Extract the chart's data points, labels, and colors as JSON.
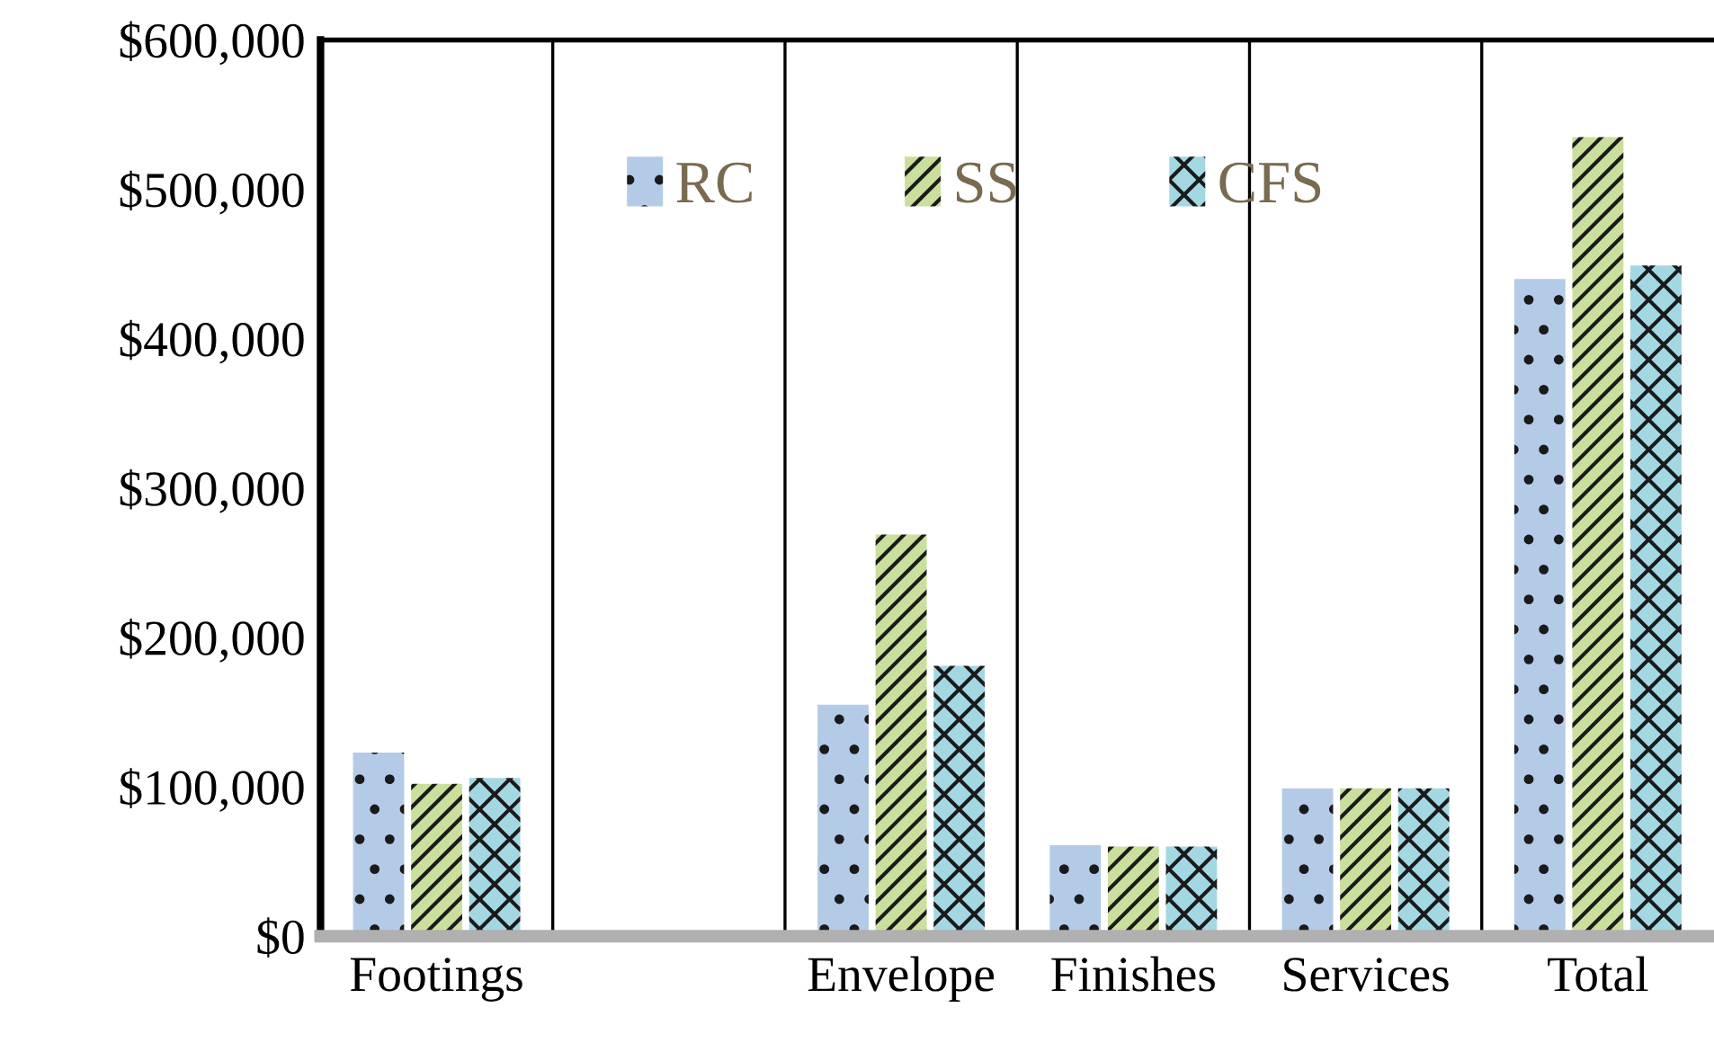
{
  "chart_data": {
    "type": "bar",
    "categories": [
      "Footings",
      null,
      "Envelope",
      "Finishes",
      "Services",
      "Total"
    ],
    "series": [
      {
        "name": "RC",
        "color": "#b4cbe8",
        "values": [
          123000,
          null,
          155000,
          61000,
          99000,
          440000
        ]
      },
      {
        "name": "SS",
        "color": "#cadf9c",
        "values": [
          102000,
          null,
          269000,
          60000,
          99000,
          535000
        ]
      },
      {
        "name": "CFS",
        "color": "#a3d8e3",
        "values": [
          106000,
          null,
          181000,
          60000,
          99000,
          449000
        ]
      }
    ],
    "ylim": [
      0,
      600000
    ],
    "yticks": [
      {
        "value": 0,
        "label": "$0"
      },
      {
        "value": 100000,
        "label": "$100,000"
      },
      {
        "value": 200000,
        "label": "$200,000"
      },
      {
        "value": 300000,
        "label": "$300,000"
      },
      {
        "value": 400000,
        "label": "$400,000"
      },
      {
        "value": 500000,
        "label": "$500,000"
      },
      {
        "value": 600000,
        "label": "$600,000"
      }
    ],
    "grid": "x",
    "legend": "top"
  }
}
